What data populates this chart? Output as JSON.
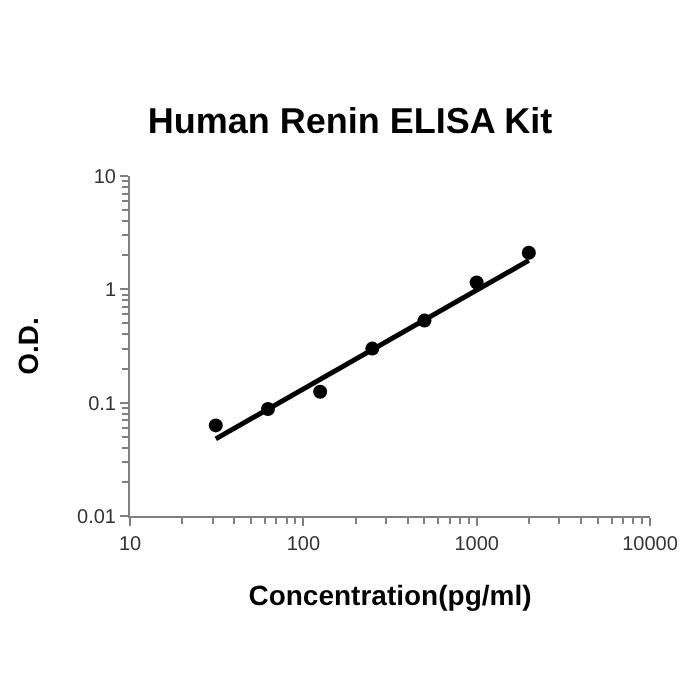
{
  "chart_data": {
    "type": "scatter",
    "title": "Human Renin ELISA Kit",
    "xlabel": "Concentration(pg/ml)",
    "ylabel": "O.D.",
    "log": "xy",
    "xlim": [
      10,
      10000
    ],
    "ylim": [
      0.01,
      10
    ],
    "xticks": [
      10,
      100,
      1000,
      10000
    ],
    "yticks": [
      0.01,
      0.1,
      1,
      10
    ],
    "marker": "circle",
    "series": [
      {
        "color": "#000000",
        "x": [
          31.25,
          62.5,
          125,
          250,
          500,
          1000,
          2000
        ],
        "values": [
          0.063,
          0.088,
          0.125,
          0.3,
          0.53,
          1.15,
          2.1
        ]
      },
      {
        "type": "line",
        "color": "#000000",
        "marker": "none",
        "line_style": "solid",
        "x": [
          31.25,
          2000
        ],
        "values": [
          0.048,
          1.8
        ]
      }
    ]
  }
}
